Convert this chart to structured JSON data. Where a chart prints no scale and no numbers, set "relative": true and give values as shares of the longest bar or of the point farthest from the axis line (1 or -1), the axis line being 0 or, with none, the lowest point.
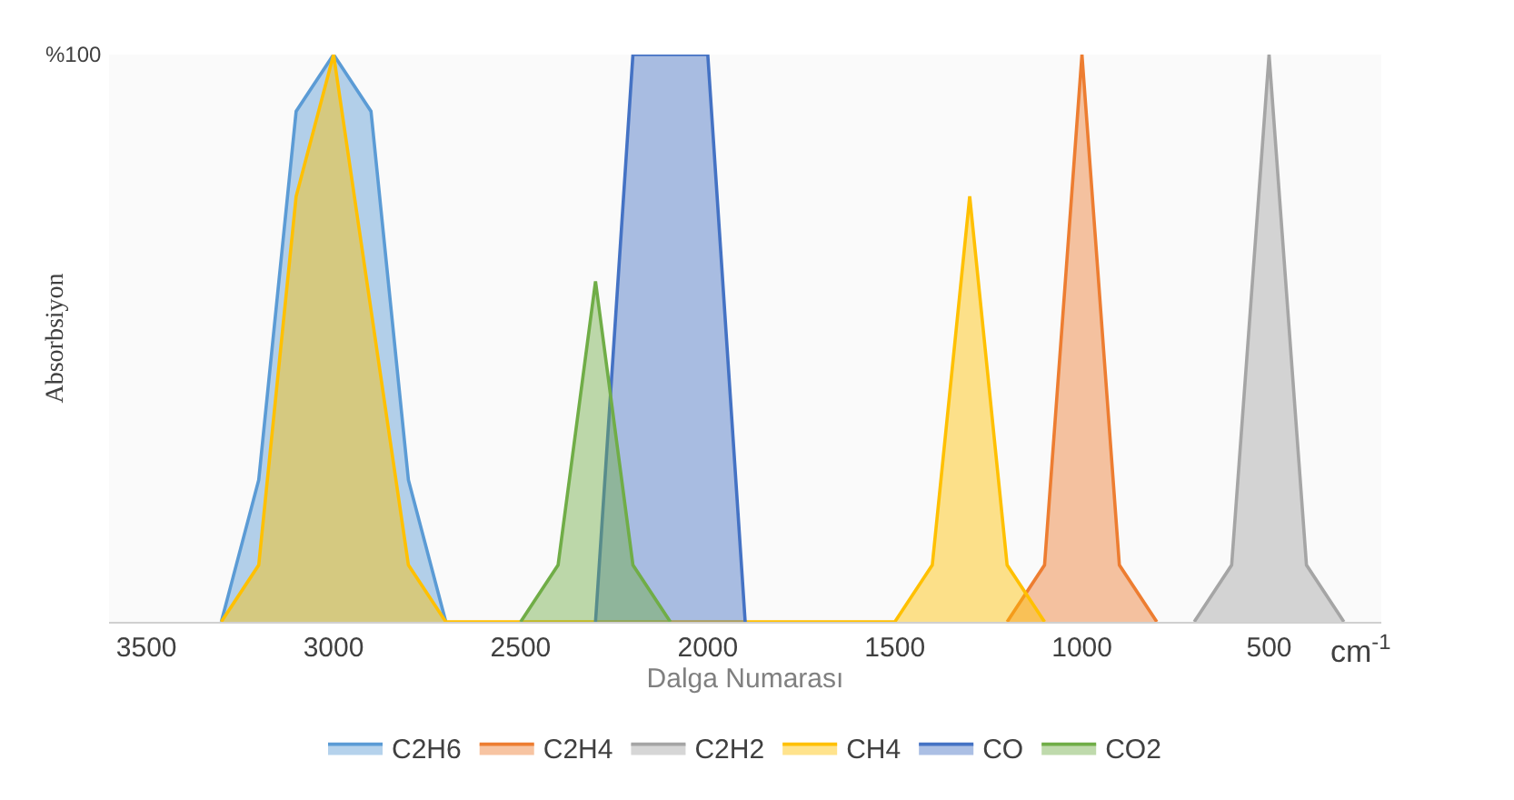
{
  "chart_data": {
    "type": "area",
    "relative": true,
    "xlabel": "Dalga Numarası",
    "ylabel": "Absorbsiyon",
    "annotations": [
      "%100",
      "cm$^{-1}$"
    ],
    "xlim": [
      3600,
      200
    ],
    "xticks": [
      3500,
      3000,
      2500,
      2000,
      1500,
      1000,
      500
    ],
    "legend": "bottom",
    "series": [
      {
        "name": "C2H6",
        "color": "#5b9bd5",
        "x": [
          3300,
          3200,
          3100,
          3000,
          2900,
          2800,
          2700
        ],
        "values": [
          0,
          0.25,
          0.9,
          1,
          0.9,
          0.25,
          0
        ]
      },
      {
        "name": "C2H4",
        "color": "#ed7d31",
        "x": [
          1200,
          1100,
          1000,
          900,
          800
        ],
        "values": [
          0,
          0.1,
          1,
          0.1,
          0
        ]
      },
      {
        "name": "C2H2",
        "color": "#a5a5a5",
        "x": [
          700,
          600,
          500,
          400,
          300
        ],
        "values": [
          0,
          0.1,
          1,
          0.1,
          0
        ]
      },
      {
        "name": "CH4",
        "color": "#ffc000",
        "x": [
          3300,
          3200,
          3100,
          3000,
          2900,
          2800,
          2700,
          1500,
          1400,
          1300,
          1200,
          1100
        ],
        "values": [
          0,
          0.1,
          0.75,
          1,
          0.55,
          0.1,
          0,
          0,
          0.1,
          0.75,
          0.1,
          0
        ]
      },
      {
        "name": "CO",
        "color": "#4472c4",
        "x": [
          2300,
          2200,
          2100,
          2000,
          1900
        ],
        "values": [
          0,
          1,
          1,
          1,
          0
        ]
      },
      {
        "name": "CO2",
        "color": "#70ad47",
        "x": [
          2500,
          2400,
          2300,
          2200,
          2100
        ],
        "values": [
          0,
          0.1,
          0.6,
          0.1,
          0
        ]
      }
    ]
  }
}
